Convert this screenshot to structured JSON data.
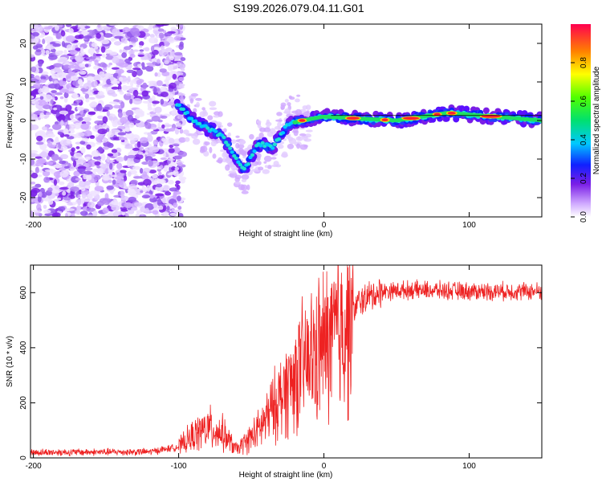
{
  "title": "S199.2026.079.04.11.G01",
  "chart_data": [
    {
      "type": "heatmap",
      "xlabel": "Height of straight line (km)",
      "ylabel": "Frequency (Hz)",
      "xlim": [
        -202,
        150
      ],
      "ylim": [
        -25,
        25
      ],
      "xticks": [
        -200,
        -100,
        0,
        100
      ],
      "yticks": [
        -20,
        -10,
        0,
        10,
        20
      ],
      "colorbar": {
        "label": "Normalized spectral amplitude",
        "range": [
          0,
          1
        ],
        "ticks": [
          0.0,
          0.2,
          0.4,
          0.6,
          0.8
        ]
      },
      "ridge": [
        {
          "x": -100,
          "y": 4
        },
        {
          "x": -90,
          "y": 0
        },
        {
          "x": -80,
          "y": -2
        },
        {
          "x": -70,
          "y": -4
        },
        {
          "x": -63,
          "y": -8
        },
        {
          "x": -55,
          "y": -13
        },
        {
          "x": -45,
          "y": -6
        },
        {
          "x": -35,
          "y": -7
        },
        {
          "x": -25,
          "y": -1
        },
        {
          "x": -15,
          "y": 0
        },
        {
          "x": 0,
          "y": 1
        },
        {
          "x": 50,
          "y": 0
        },
        {
          "x": 85,
          "y": 2
        },
        {
          "x": 150,
          "y": 0
        }
      ]
    },
    {
      "type": "line",
      "xlabel": "Height of straight line (km)",
      "ylabel": "SNR (10 * v/v)",
      "xlim": [
        -202,
        150
      ],
      "ylim": [
        0,
        700
      ],
      "xticks": [
        -200,
        -100,
        0,
        100
      ],
      "yticks": [
        0,
        200,
        400,
        600
      ],
      "series": [
        {
          "name": "SNR",
          "color": "#ee2222",
          "trend": [
            {
              "x": -202,
              "y": 20
            },
            {
              "x": -120,
              "y": 22
            },
            {
              "x": -100,
              "y": 40
            },
            {
              "x": -90,
              "y": 80
            },
            {
              "x": -80,
              "y": 110
            },
            {
              "x": -70,
              "y": 90
            },
            {
              "x": -60,
              "y": 30
            },
            {
              "x": -45,
              "y": 100
            },
            {
              "x": -35,
              "y": 180
            },
            {
              "x": -25,
              "y": 260
            },
            {
              "x": -15,
              "y": 330
            },
            {
              "x": -5,
              "y": 380
            },
            {
              "x": 5,
              "y": 430
            },
            {
              "x": 15,
              "y": 500
            },
            {
              "x": 25,
              "y": 570
            },
            {
              "x": 40,
              "y": 605
            },
            {
              "x": 60,
              "y": 610
            },
            {
              "x": 100,
              "y": 605
            },
            {
              "x": 150,
              "y": 605
            }
          ]
        }
      ]
    }
  ]
}
